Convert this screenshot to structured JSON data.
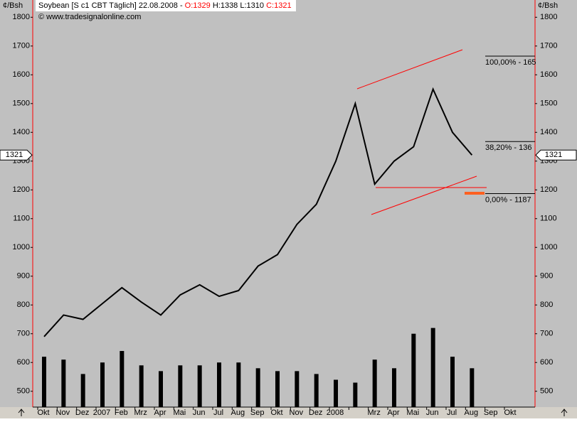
{
  "chart_data": {
    "type": "line",
    "header": {
      "symbol": "Soybean [S c1 CBT  Täglich] 22.08.2008 -",
      "open": "O:1329",
      "high": "H:1338",
      "low": "L:1310",
      "close": "C:1321"
    },
    "copyright": "© www.tradesignalonline.com",
    "unit_left": "¢/Bsh",
    "unit_right": "¢/Bsh",
    "last_price": 1321,
    "categories": [
      "Okt",
      "Nov",
      "Dez",
      "2007",
      "Feb",
      "Mrz",
      "Apr",
      "Mai",
      "Jun",
      "Jul",
      "Aug",
      "Sep",
      "Okt",
      "Nov",
      "Dez",
      "2008",
      null,
      "Mrz",
      "Apr",
      "Mai",
      "Jun",
      "Jul",
      "Aug",
      "Sep",
      "Okt"
    ],
    "values": [
      690,
      765,
      750,
      805,
      860,
      810,
      765,
      835,
      870,
      830,
      850,
      935,
      975,
      1080,
      1150,
      1300,
      1500,
      1220,
      1300,
      1350,
      1550,
      1400,
      1321,
      null,
      null
    ],
    "volume": [
      620,
      610,
      560,
      600,
      640,
      590,
      570,
      590,
      590,
      600,
      600,
      580,
      570,
      570,
      560,
      540,
      530,
      610,
      580,
      700,
      720,
      620,
      580,
      null,
      null
    ],
    "color": "#000000",
    "volume_color": "#000000",
    "fibonacci": [
      {
        "value": 1665,
        "label": "100,00% - 165"
      },
      {
        "value": 1368,
        "label": "38,20% - 136"
      },
      {
        "value": 1187,
        "label": "0,00% - 1187"
      }
    ],
    "ylim": [
      445,
      1860
    ],
    "yticks": [
      500,
      600,
      700,
      800,
      900,
      1000,
      1100,
      1200,
      1300,
      1400,
      1500,
      1600,
      1700,
      1800
    ]
  }
}
